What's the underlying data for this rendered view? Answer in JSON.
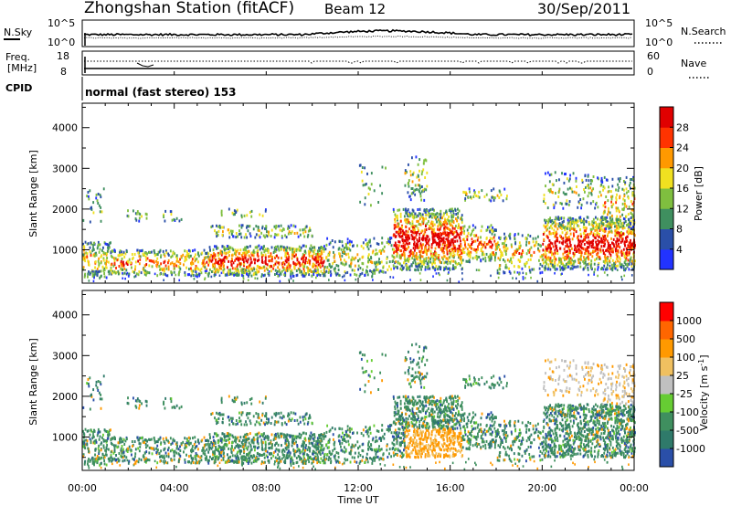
{
  "header": {
    "title": "Zhongshan Station (fitACF)",
    "beam": "Beam 12",
    "date": "30/Sep/2011"
  },
  "noise_panel": {
    "left_label": "N.Sky",
    "left_ticks": [
      "10^5",
      "10^0"
    ],
    "right_ticks": [
      "10^5",
      "10^0"
    ],
    "right_label": "N.Search"
  },
  "freq_panel": {
    "left_label_line1": "Freq.",
    "left_label_line2": "[MHz]",
    "left_ticks": [
      "18",
      "8"
    ],
    "right_ticks": [
      "60",
      "0"
    ],
    "right_label": "Nave"
  },
  "cpid": {
    "label": "CPID",
    "text": "normal (fast stereo) 153"
  },
  "chart_data": [
    {
      "type": "heatmap",
      "name": "power",
      "xlabel": "Time UT",
      "ylabel": "Slant Range [km]",
      "x_range_hours": [
        0,
        24
      ],
      "x_ticks": [
        "00:00",
        "04:00",
        "08:00",
        "12:00",
        "16:00",
        "20:00",
        "00:00"
      ],
      "y_range_km": [
        180,
        4600
      ],
      "y_ticks": [
        1000,
        2000,
        3000,
        4000
      ],
      "colorbar": {
        "label": "Power [dB]",
        "ticks": [
          "4",
          "8",
          "12",
          "16",
          "20",
          "24",
          "28"
        ],
        "colors": [
          "#2233ff",
          "#2a4fa8",
          "#3f8f5f",
          "#7fbf3f",
          "#f0e020",
          "#ff9900",
          "#ff3300",
          "#e00000"
        ]
      }
    },
    {
      "type": "heatmap",
      "name": "velocity",
      "xlabel": "Time UT",
      "ylabel": "Slant Range [km]",
      "x_range_hours": [
        0,
        24
      ],
      "x_ticks": [
        "00:00",
        "04:00",
        "08:00",
        "12:00",
        "16:00",
        "20:00",
        "00:00"
      ],
      "y_range_km": [
        180,
        4600
      ],
      "y_ticks": [
        1000,
        2000,
        3000,
        4000
      ],
      "colorbar": {
        "label": "Velocity [m s-1]",
        "ticks": [
          "1000",
          "500",
          "100",
          "25",
          "-25",
          "-100",
          "-500",
          "-1000"
        ],
        "colors": [
          "#2a4fa8",
          "#2f7a6a",
          "#3f8f5f",
          "#66cc33",
          "#c0c0c0",
          "#f0c060",
          "#ff9900",
          "#ff6600",
          "#ff0000"
        ]
      }
    }
  ]
}
